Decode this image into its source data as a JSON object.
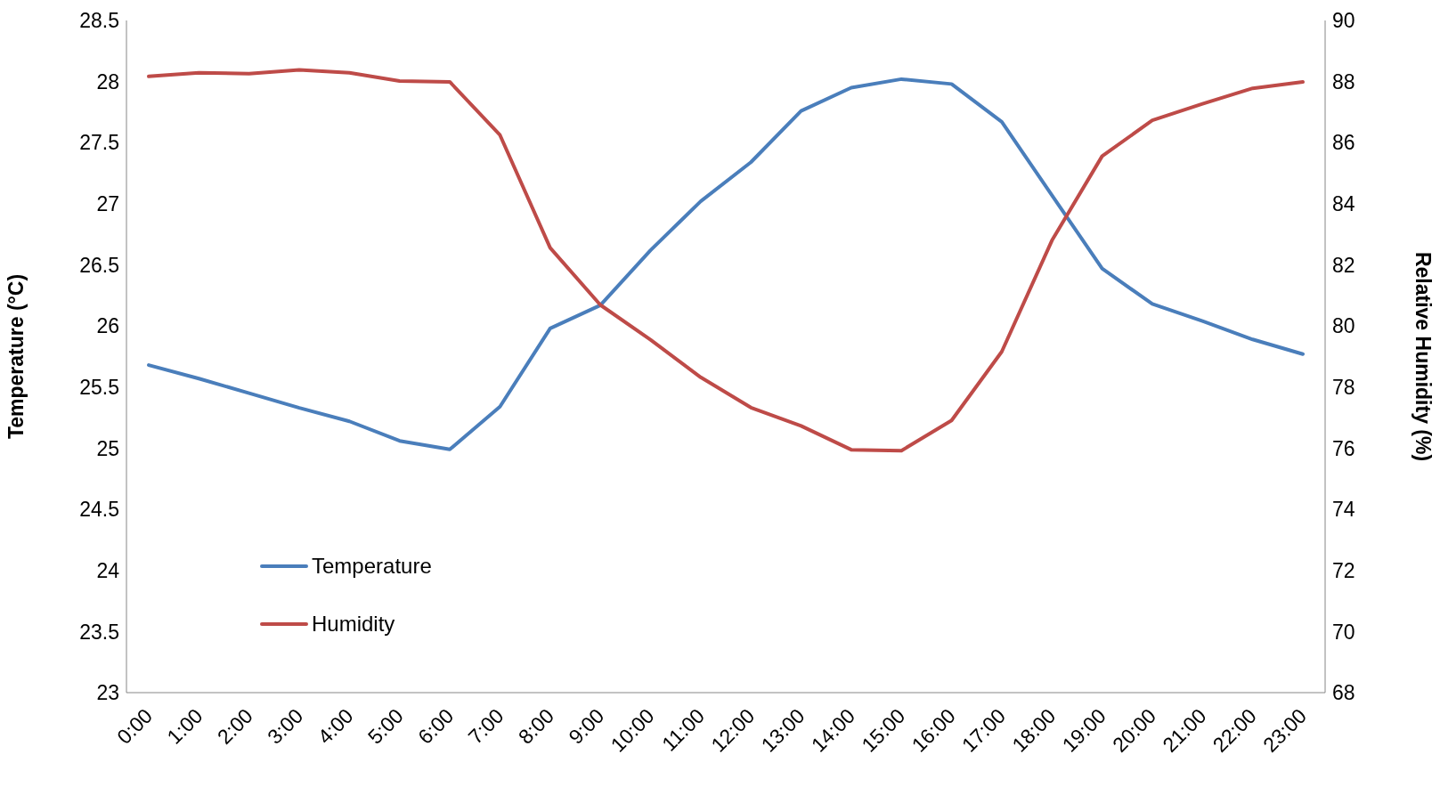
{
  "chart_data": {
    "type": "line",
    "xlabel": null,
    "ylabel": "Temperature (°C)",
    "y2label": "Relative Humidity (%)",
    "categories": [
      "0:00",
      "1:00",
      "2:00",
      "3:00",
      "4:00",
      "5:00",
      "6:00",
      "7:00",
      "8:00",
      "9:00",
      "10:00",
      "11:00",
      "12:00",
      "13:00",
      "14:00",
      "15:00",
      "16:00",
      "17:00",
      "18:00",
      "19:00",
      "20:00",
      "21:00",
      "22:00",
      "23:00"
    ],
    "series": [
      {
        "name": "Temperature",
        "color": "#4a7ebb",
        "values": [
          25.68,
          25.57,
          25.45,
          25.33,
          25.22,
          25.06,
          24.99,
          25.34,
          25.98,
          26.17,
          26.62,
          27.02,
          27.34,
          27.76,
          27.95,
          28.02,
          27.98,
          27.67,
          27.07,
          26.47,
          26.18,
          26.04,
          25.89,
          25.77
        ]
      },
      {
        "name": "Humidity",
        "color": "#be4b48",
        "axis": "y2",
        "values": [
          88.17,
          88.29,
          88.26,
          88.38,
          88.29,
          88.02,
          87.99,
          86.25,
          82.56,
          80.69,
          79.55,
          78.32,
          77.33,
          76.73,
          75.95,
          75.92,
          76.91,
          79.16,
          82.8,
          85.56,
          86.73,
          87.27,
          87.78,
          87.99
        ]
      }
    ],
    "ylim": [
      23,
      28.5
    ],
    "yticks": [
      23,
      23.5,
      24,
      24.5,
      25,
      25.5,
      26,
      26.5,
      27,
      27.5,
      28,
      28.5
    ],
    "y2lim": [
      68,
      90
    ],
    "y2ticks": [
      68,
      70,
      72,
      74,
      76,
      78,
      80,
      82,
      84,
      86,
      88,
      90
    ],
    "grid": false,
    "legend": "bottom left",
    "marker": "none",
    "line_style": "solid"
  }
}
